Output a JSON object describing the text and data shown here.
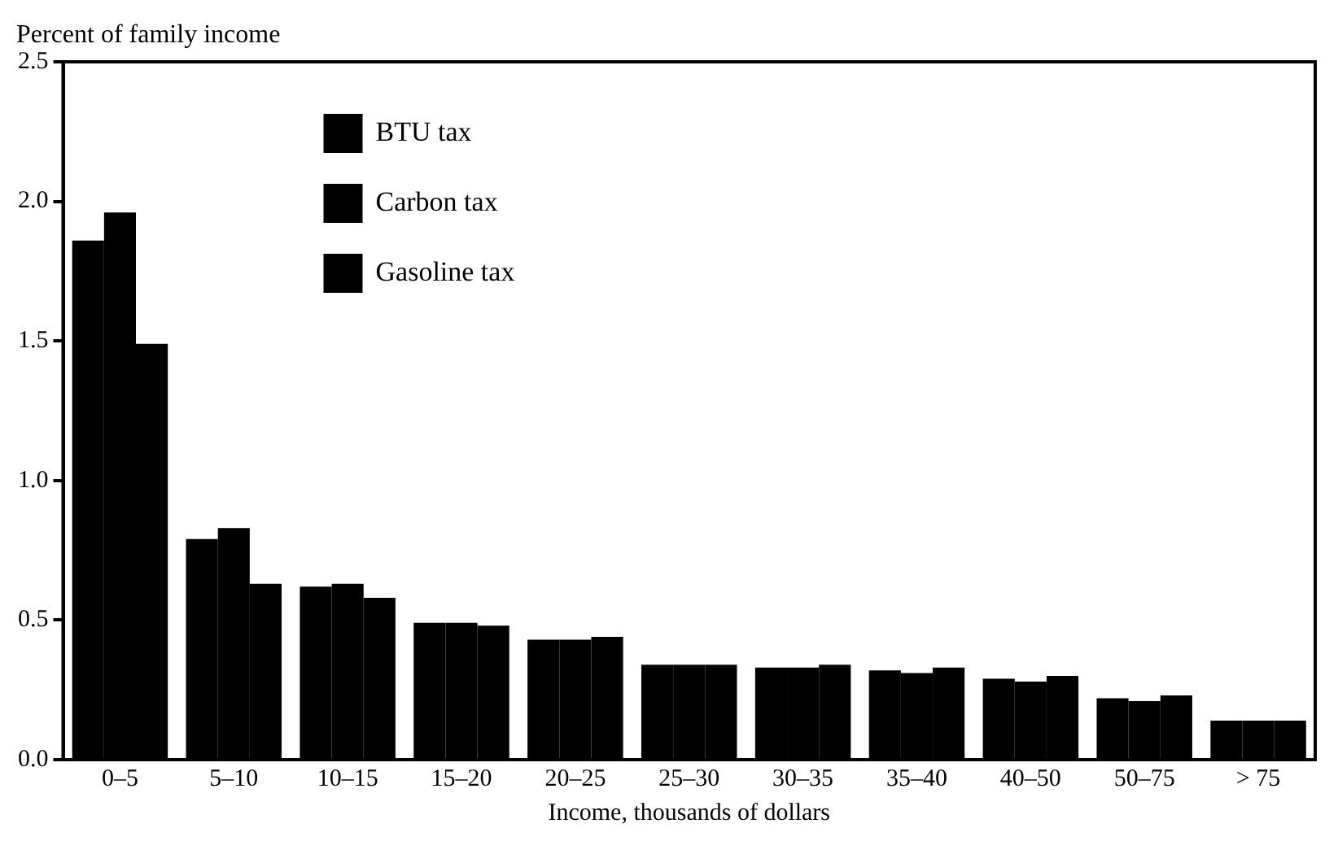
{
  "chart_data": {
    "type": "bar",
    "ylabel": "Percent of family income",
    "xlabel": "Income, thousands of dollars",
    "categories": [
      "0–5",
      "5–10",
      "10–15",
      "15–20",
      "20–25",
      "25–30",
      "30–35",
      "35–40",
      "40–50",
      "50–75",
      "> 75"
    ],
    "series": [
      {
        "name": "BTU tax",
        "color": "#000000",
        "values": [
          1.86,
          0.79,
          0.62,
          0.49,
          0.43,
          0.34,
          0.33,
          0.32,
          0.29,
          0.22,
          0.14
        ]
      },
      {
        "name": "Carbon tax",
        "color": "#000000",
        "values": [
          1.96,
          0.83,
          0.63,
          0.49,
          0.43,
          0.34,
          0.33,
          0.31,
          0.28,
          0.21,
          0.14
        ]
      },
      {
        "name": "Gasoline tax",
        "color": "#000000",
        "values": [
          1.49,
          0.63,
          0.58,
          0.48,
          0.44,
          0.34,
          0.34,
          0.33,
          0.3,
          0.23,
          0.14
        ]
      }
    ],
    "ylim": [
      0,
      2.5
    ],
    "yticks": [
      {
        "value": 0,
        "label": "0.0"
      },
      {
        "value": 0.5,
        "label": "0.5"
      },
      {
        "value": 1,
        "label": "1.0"
      },
      {
        "value": 1.5,
        "label": "1.5"
      },
      {
        "value": 2,
        "label": "2.0"
      },
      {
        "value": 2.5,
        "label": "2.5"
      }
    ],
    "grid": false,
    "legend": "top left"
  }
}
